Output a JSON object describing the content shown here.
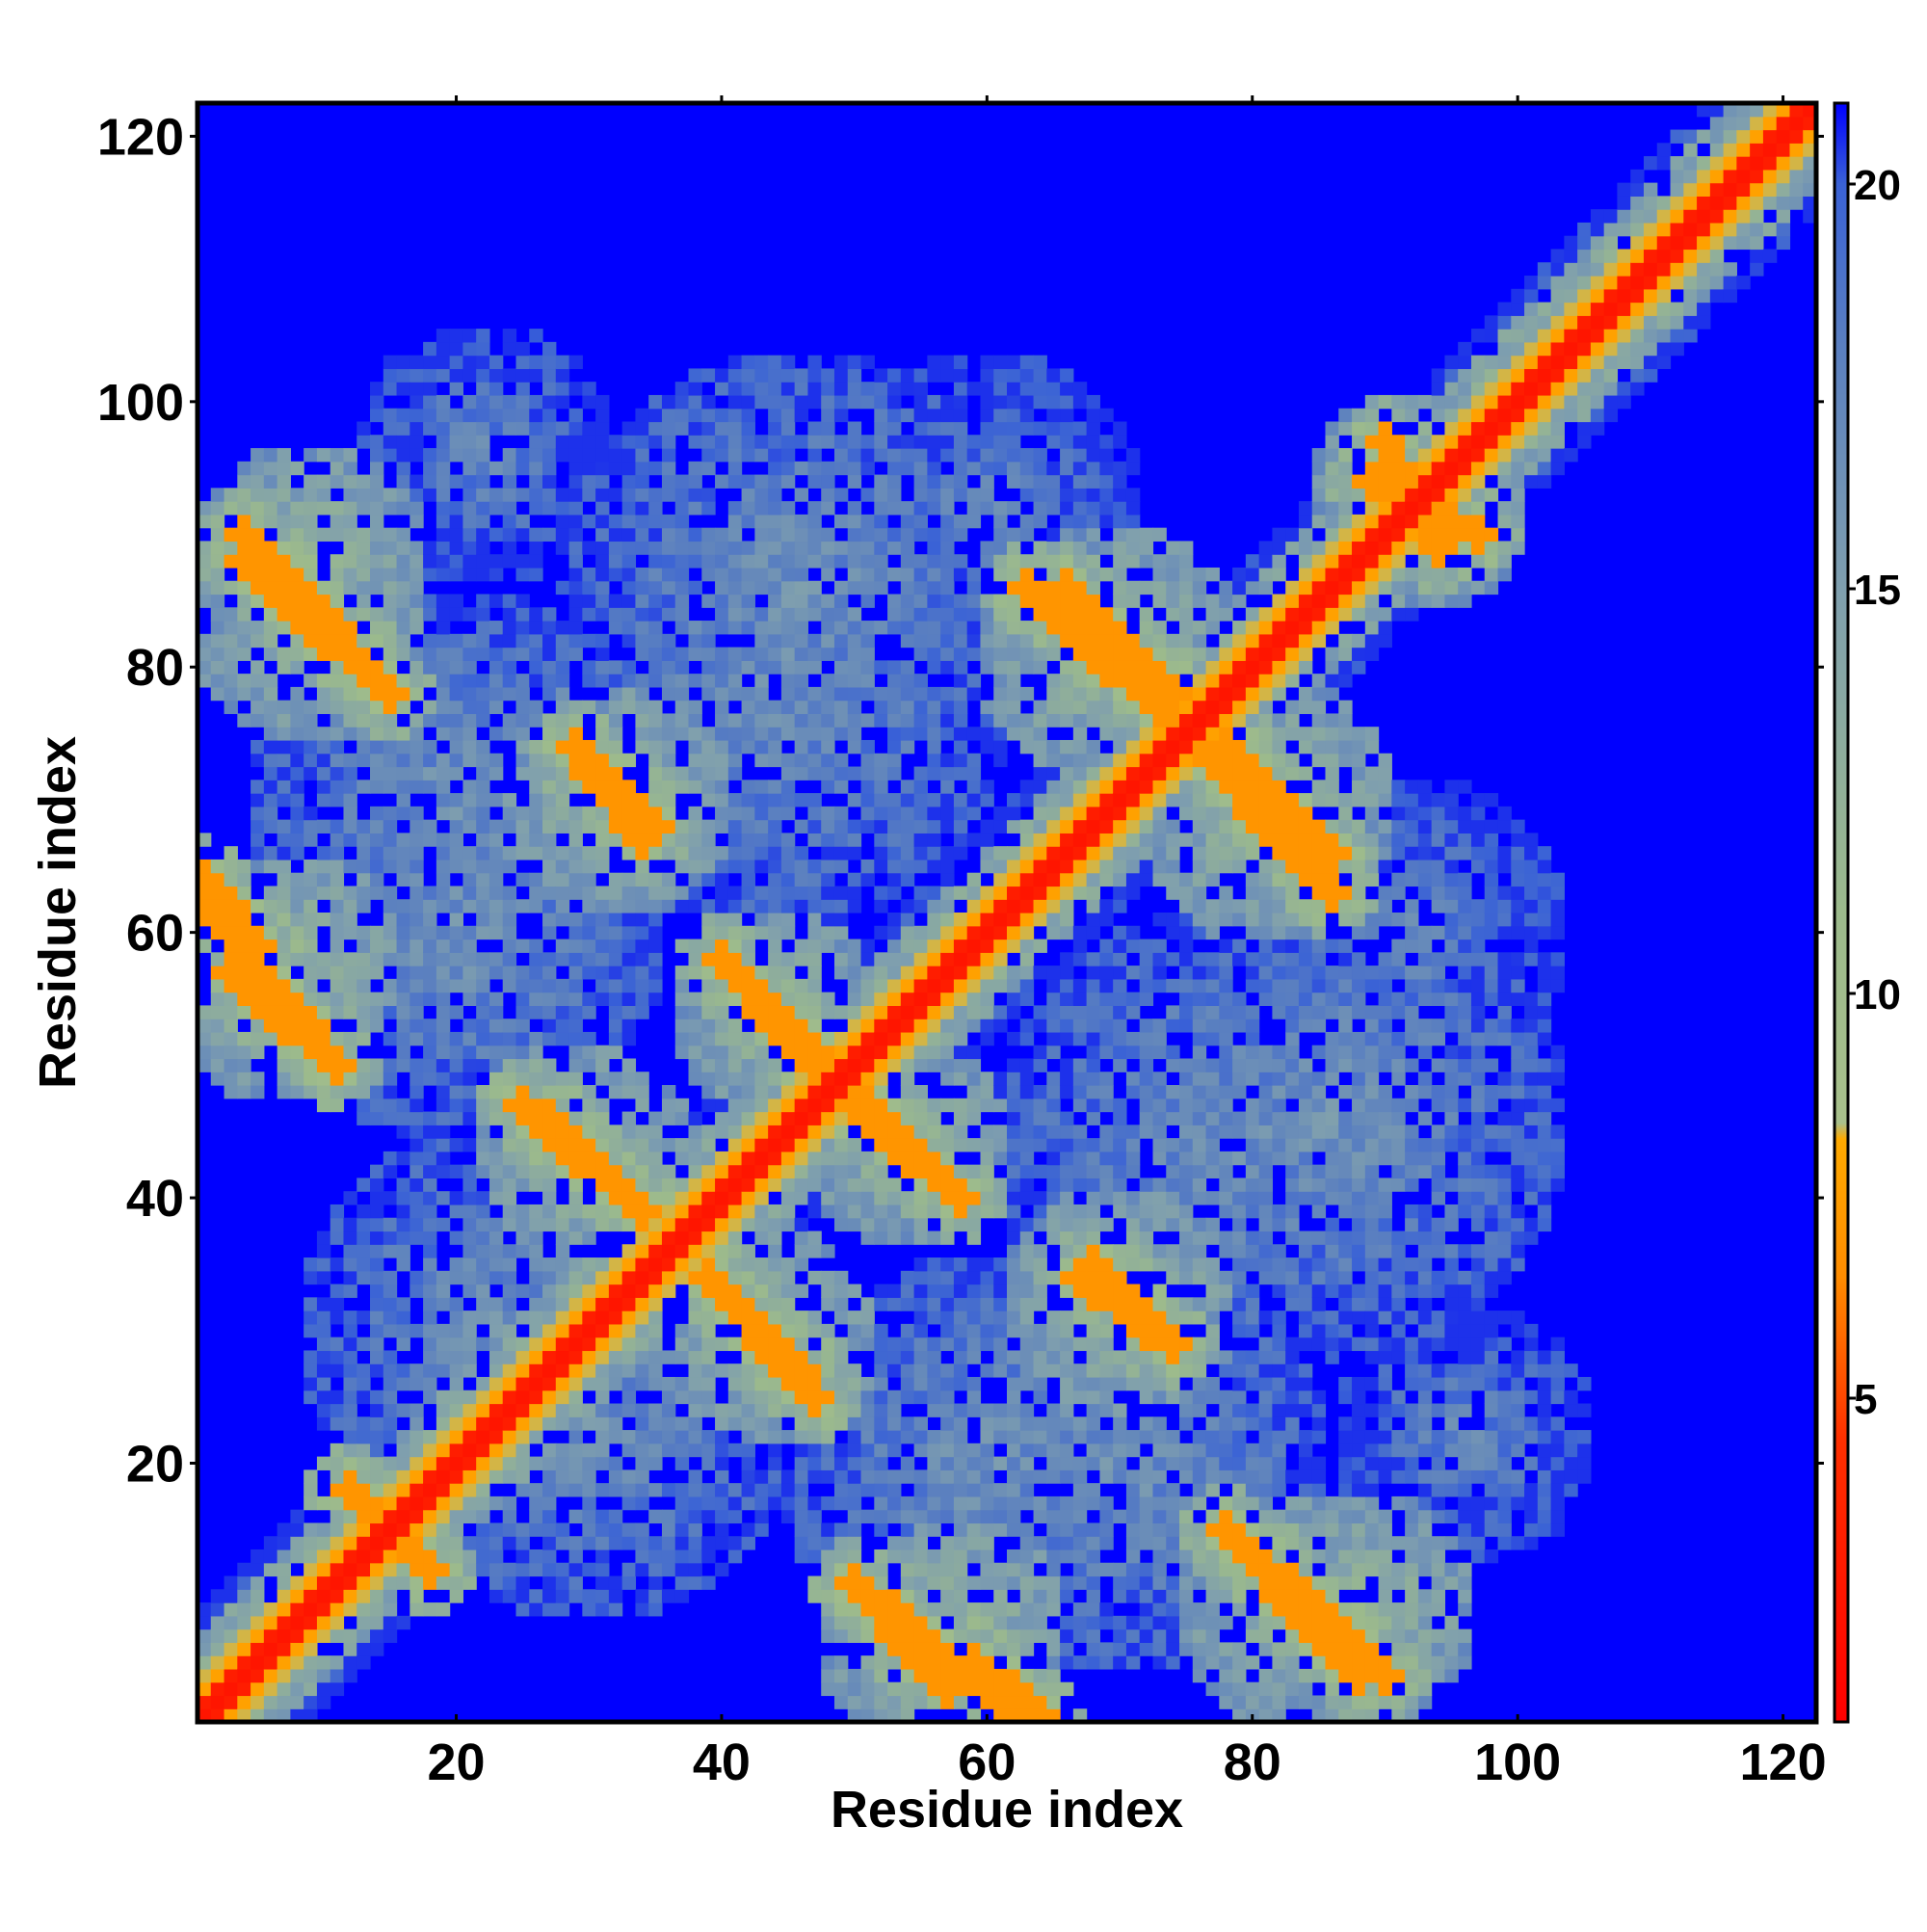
{
  "chart_data": {
    "type": "heatmap",
    "title": "",
    "xlabel": "Residue index",
    "ylabel": "Residue index",
    "n_residues": 122,
    "xlim": [
      1,
      122
    ],
    "ylim": [
      1,
      122
    ],
    "x_ticks": [
      20,
      40,
      60,
      80,
      100,
      120
    ],
    "y_ticks": [
      20,
      40,
      60,
      80,
      100,
      120
    ],
    "x_tick_labels": [
      "20",
      "40",
      "60",
      "80",
      "100",
      "120"
    ],
    "y_tick_labels": [
      "20",
      "40",
      "60",
      "80",
      "100",
      "120"
    ],
    "colorbar": {
      "range": [
        1,
        21
      ],
      "ticks": [
        5,
        10,
        15,
        20
      ],
      "tick_labels": [
        "5",
        "10",
        "15",
        "20"
      ],
      "stops": [
        {
          "value": 1,
          "color": "#ff0000"
        },
        {
          "value": 4.5,
          "color": "#ff3000"
        },
        {
          "value": 6.5,
          "color": "#ff8c00"
        },
        {
          "value": 8.2,
          "color": "#ffaa00"
        },
        {
          "value": 8.4,
          "color": "#a8c08c"
        },
        {
          "value": 11,
          "color": "#9cba8c"
        },
        {
          "value": 15,
          "color": "#7f9fae"
        },
        {
          "value": 18,
          "color": "#5a7fc0"
        },
        {
          "value": 20,
          "color": "#3a62d6"
        },
        {
          "value": 21,
          "color": "#0000ff"
        }
      ]
    },
    "background_value": 21,
    "diagonal_bands": [
      {
        "value": 2.5,
        "width": 1.5
      },
      {
        "value": 6.5,
        "width": 3
      },
      {
        "value": 11,
        "width": 6
      },
      {
        "value": 16,
        "width": 9
      }
    ],
    "contact_segments": [
      {
        "x1": 4,
        "y1": 90,
        "x2": 15,
        "y2": 78,
        "value": 7
      },
      {
        "x1": 1,
        "y1": 64,
        "x2": 5,
        "y2": 59,
        "value": 7
      },
      {
        "x1": 5,
        "y1": 57,
        "x2": 11,
        "y2": 50,
        "value": 7
      },
      {
        "x1": 27,
        "y1": 46,
        "x2": 34,
        "y2": 39,
        "value": 7
      },
      {
        "x1": 29,
        "y1": 74,
        "x2": 34,
        "y2": 67,
        "value": 7
      },
      {
        "x1": 40,
        "y1": 58,
        "x2": 47,
        "y2": 50,
        "value": 7
      },
      {
        "x1": 50,
        "y1": 48,
        "x2": 58,
        "y2": 40,
        "value": 7
      },
      {
        "x1": 40,
        "y1": 33,
        "x2": 47,
        "y2": 25,
        "value": 7
      },
      {
        "x1": 66,
        "y1": 86,
        "x2": 74,
        "y2": 78,
        "value": 7
      },
      {
        "x1": 76,
        "y1": 74,
        "x2": 86,
        "y2": 63,
        "value": 7
      },
      {
        "x1": 68,
        "y1": 35,
        "x2": 74,
        "y2": 29,
        "value": 7
      },
      {
        "x1": 51,
        "y1": 10,
        "x2": 57,
        "y2": 3,
        "value": 7
      },
      {
        "x1": 58,
        "y1": 4,
        "x2": 63,
        "y2": 1,
        "value": 7
      },
      {
        "x1": 78,
        "y1": 15,
        "x2": 88,
        "y2": 4,
        "value": 7
      },
      {
        "x1": 89,
        "y1": 94,
        "x2": 97,
        "y2": 90,
        "value": 7
      },
      {
        "x1": 12,
        "y1": 18,
        "x2": 17,
        "y2": 13,
        "value": 7
      }
    ],
    "contact_blobs": [
      {
        "cx": 9,
        "cy": 88,
        "r": 9,
        "value": 12
      },
      {
        "cx": 8,
        "cy": 58,
        "r": 8,
        "value": 12
      },
      {
        "cx": 31,
        "cy": 42,
        "r": 8,
        "value": 12
      },
      {
        "cx": 32,
        "cy": 70,
        "r": 9,
        "value": 12
      },
      {
        "cx": 44,
        "cy": 54,
        "r": 8,
        "value": 12
      },
      {
        "cx": 54,
        "cy": 44,
        "r": 8,
        "value": 12
      },
      {
        "cx": 44,
        "cy": 29,
        "r": 8,
        "value": 12
      },
      {
        "cx": 70,
        "cy": 82,
        "r": 9,
        "value": 12
      },
      {
        "cx": 81,
        "cy": 68,
        "r": 9,
        "value": 12
      },
      {
        "cx": 71,
        "cy": 32,
        "r": 8,
        "value": 12
      },
      {
        "cx": 55,
        "cy": 6,
        "r": 8,
        "value": 12
      },
      {
        "cx": 83,
        "cy": 9,
        "r": 9,
        "value": 12
      },
      {
        "cx": 93,
        "cy": 92,
        "r": 8,
        "value": 12
      },
      {
        "cx": 44,
        "cy": 78,
        "r": 18,
        "value": 16
      },
      {
        "cx": 20,
        "cy": 70,
        "r": 16,
        "value": 16
      },
      {
        "cx": 60,
        "cy": 20,
        "r": 16,
        "value": 16
      },
      {
        "cx": 86,
        "cy": 46,
        "r": 18,
        "value": 16
      },
      {
        "cx": 24,
        "cy": 30,
        "r": 16,
        "value": 16
      },
      {
        "cx": 96,
        "cy": 22,
        "r": 10,
        "value": 17
      },
      {
        "cx": 60,
        "cy": 92,
        "r": 12,
        "value": 17
      }
    ]
  }
}
